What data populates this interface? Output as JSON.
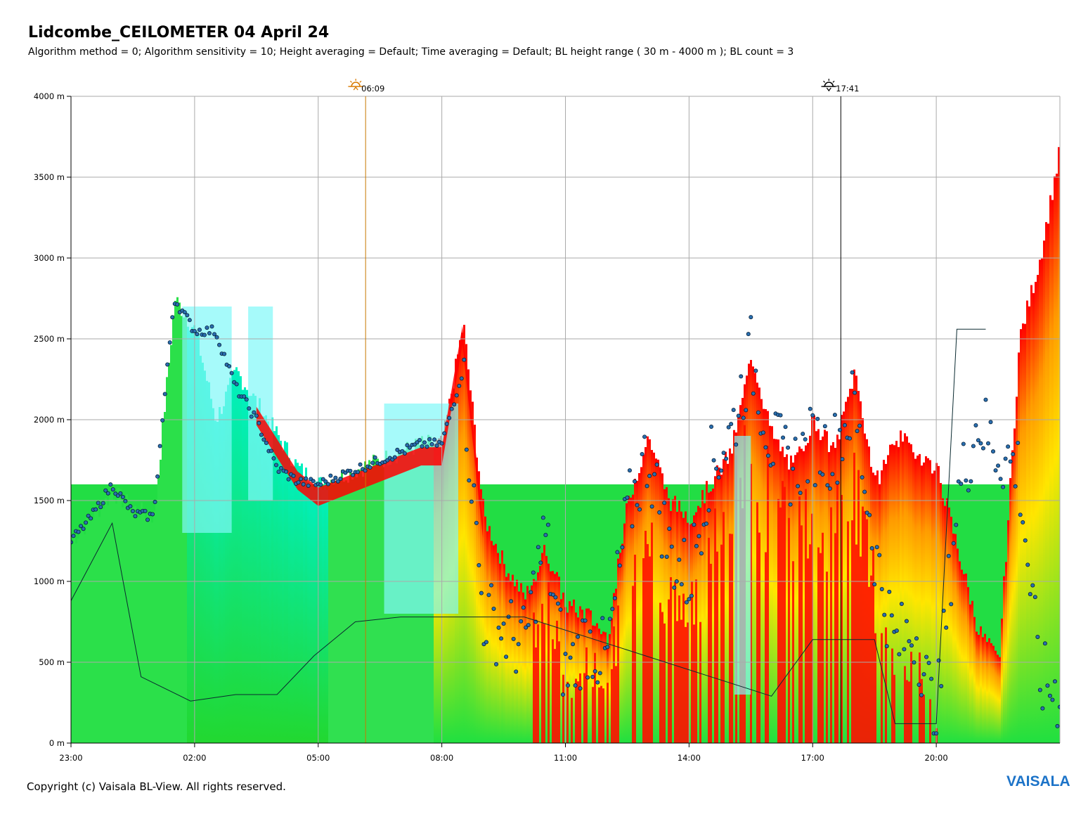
{
  "header": {
    "title": "Lidcombe_CEILOMETER 04 April 24",
    "subtitle": "Algorithm method = 0; Algorithm sensitivity = 10; Height averaging = Default; Time averaging = Default; BL height range ( 30 m - 4000 m ); BL count = 3"
  },
  "footer": {
    "copyright": "Copyright (c) Vaisala BL-View. All rights reserved.",
    "logo": "VAISALA"
  },
  "colors": {
    "backscatter_high": "#ff0000",
    "backscatter_mid": "#ffe000",
    "backscatter_low": "#00e85a",
    "backscatter_lowest": "#00f0ff",
    "bl_marker": "#2a6fb0",
    "sunrise_line": "#c87800",
    "sunset_line": "#000000",
    "logo": "#1c73c8"
  },
  "chart_data": {
    "type": "heatmap",
    "y_ticks": [
      "0 m",
      "500 m",
      "1000 m",
      "1500 m",
      "2000 m",
      "2500 m",
      "3000 m",
      "3500 m",
      "4000 m"
    ],
    "x_ticks": [
      "23:00",
      "02:00",
      "05:00",
      "08:00",
      "11:00",
      "14:00",
      "17:00",
      "20:00"
    ],
    "ylim": [
      0,
      4000
    ],
    "grid": true,
    "sunrise": {
      "time": "06:09",
      "icon": "sunrise-icon"
    },
    "sunset": {
      "time": "17:41",
      "icon": "sunset-icon"
    },
    "top_profile": {
      "hours_after_2300": [
        0,
        0.5,
        1,
        1.5,
        2,
        2.5,
        3,
        3.5,
        4,
        4.5,
        5,
        5.5,
        6,
        6.5,
        7,
        7.5,
        8,
        8.5,
        9,
        9.5,
        10,
        10.5,
        11,
        11.5,
        12,
        12.5,
        13,
        13.5,
        14,
        14.5,
        15,
        15.5,
        16,
        16.5,
        17,
        17.5,
        18,
        18.5,
        19,
        19.5,
        20,
        20.5,
        21,
        21.5,
        22,
        22.5,
        23,
        23.5,
        24
      ],
      "height_m": [
        1250,
        1400,
        1550,
        1450,
        1400,
        2750,
        2550,
        2000,
        2300,
        2100,
        1900,
        1700,
        1600,
        1650,
        1700,
        1750,
        1800,
        1850,
        1850,
        2600,
        1400,
        1100,
        900,
        1200,
        850,
        800,
        650,
        1500,
        1900,
        1500,
        1400,
        1600,
        1800,
        2400,
        1900,
        1700,
        2000,
        1800,
        2300,
        1600,
        1900,
        1800,
        1700,
        1200,
        700,
        500,
        2500,
        3000,
        3700
      ]
    },
    "bl_points": {
      "hours_after_2300": [
        0,
        0.5,
        1,
        1.5,
        2,
        2.5,
        3,
        3.5,
        4,
        4.5,
        5,
        5.5,
        6,
        6.5,
        7,
        7.5,
        8,
        8.5,
        9,
        9.5,
        10,
        10.5,
        11,
        11.5,
        12,
        12.5,
        13,
        13.5,
        14,
        14.5,
        15,
        15.5,
        16,
        16.5,
        17,
        17.5,
        18,
        18.5,
        19,
        19.5,
        20,
        20.5,
        21,
        21.5,
        22,
        22.5,
        23,
        23.5,
        24
      ],
      "height_m": [
        1250,
        1400,
        1600,
        1420,
        1400,
        2750,
        2550,
        2550,
        2200,
        2000,
        1700,
        1620,
        1600,
        1650,
        1700,
        1750,
        1800,
        1850,
        1850,
        2300,
        800,
        700,
        600,
        1300,
        400,
        650,
        500,
        1400,
        1800,
        1200,
        1000,
        1700,
        1900,
        2400,
        1850,
        1700,
        1850,
        1800,
        2100,
        1200,
        600,
        700,
        100,
        1500,
        2000,
        1800,
        1700,
        400,
        300
      ]
    }
  }
}
